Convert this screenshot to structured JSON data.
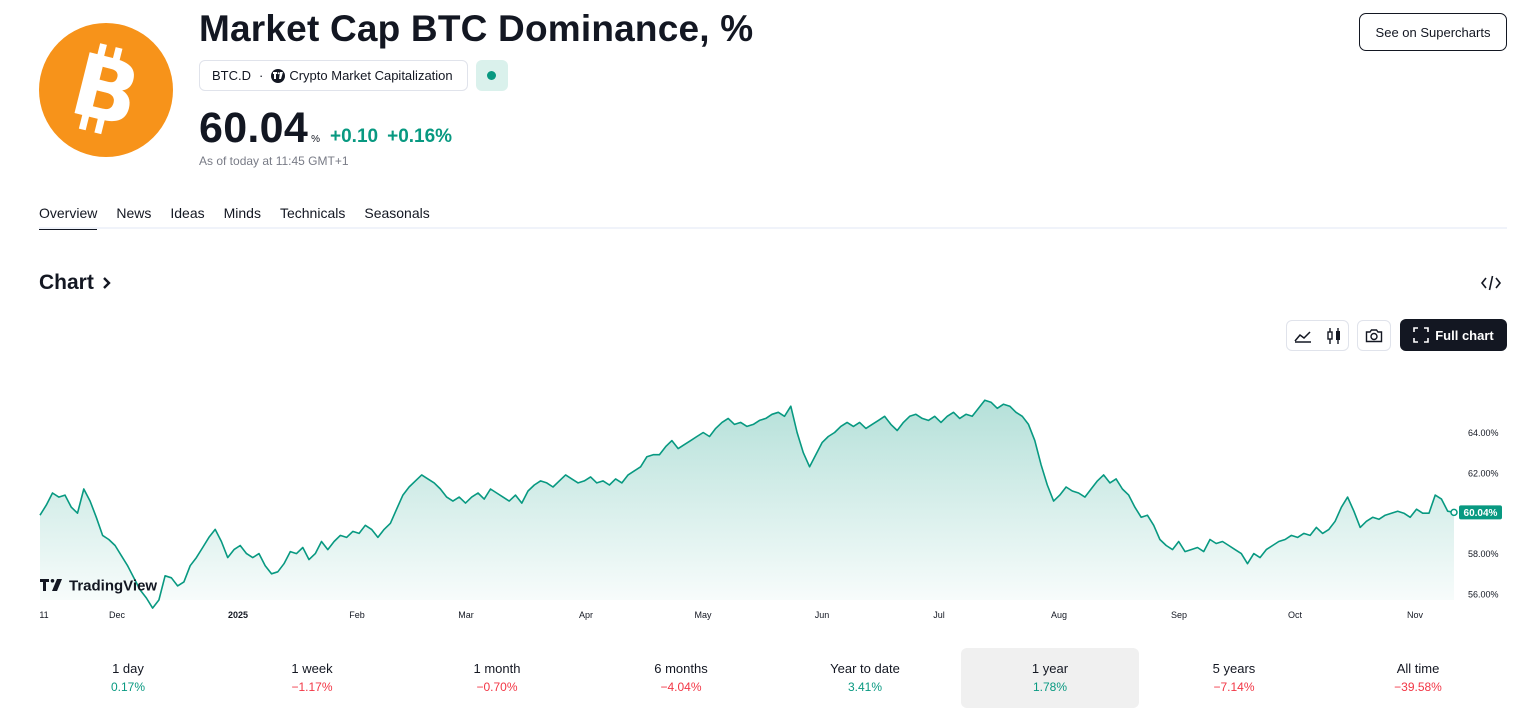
{
  "header": {
    "title": "Market Cap BTC Dominance, %",
    "ticker": "BTC.D",
    "separator": "·",
    "exchange": "Crypto Market Capitalization",
    "price": "60.04",
    "unit": "%",
    "change": "+0.10",
    "change_pct": "+0.16%",
    "as_of": "As of today at 11:45 GMT+1",
    "supercharts_label": "See on Supercharts",
    "logo_icon": "bitcoin-icon",
    "status_color": "#089981"
  },
  "tabs": [
    "Overview",
    "News",
    "Ideas",
    "Minds",
    "Technicals",
    "Seasonals"
  ],
  "chart_section": {
    "heading": "Chart",
    "full_chart_label": "Full chart",
    "watermark": "TradingView"
  },
  "colors": {
    "accent": "#089981",
    "negative": "#f23645",
    "text": "#131722"
  },
  "chart_data": {
    "type": "area",
    "y_ticks": [
      "56.00%",
      "58.00%",
      "60.00%",
      "62.00%",
      "64.00%"
    ],
    "y_tick_values": [
      56,
      58,
      60,
      62,
      64
    ],
    "x_labels": [
      "11",
      "Dec",
      "2025",
      "Feb",
      "Mar",
      "Apr",
      "May",
      "Jun",
      "Jul",
      "Aug",
      "Sep",
      "Oct",
      "Nov"
    ],
    "ylim": [
      55.8,
      66.6
    ],
    "last_value_label": "60.04%",
    "grid": false,
    "series_color": "#089981",
    "values": [
      59.9,
      60.4,
      61.0,
      60.8,
      60.9,
      60.3,
      60.0,
      61.2,
      60.6,
      59.8,
      58.9,
      58.7,
      58.4,
      57.9,
      57.4,
      56.8,
      56.2,
      55.8,
      55.3,
      55.7,
      56.9,
      56.8,
      56.4,
      56.6,
      57.4,
      57.8,
      58.3,
      58.8,
      59.2,
      58.6,
      57.8,
      58.2,
      58.4,
      58.0,
      57.8,
      58.0,
      57.4,
      57.0,
      57.1,
      57.5,
      58.1,
      58.0,
      58.3,
      57.7,
      58.0,
      58.6,
      58.2,
      58.6,
      58.9,
      58.8,
      59.1,
      59.0,
      59.4,
      59.2,
      58.8,
      59.2,
      59.5,
      60.2,
      60.9,
      61.3,
      61.6,
      61.9,
      61.7,
      61.5,
      61.2,
      60.8,
      60.6,
      60.8,
      60.5,
      60.8,
      61.0,
      60.7,
      61.2,
      61.0,
      60.8,
      60.6,
      60.9,
      60.5,
      61.1,
      61.4,
      61.6,
      61.5,
      61.3,
      61.6,
      61.9,
      61.7,
      61.5,
      61.6,
      61.8,
      61.5,
      61.6,
      61.4,
      61.7,
      61.5,
      61.9,
      62.1,
      62.3,
      62.8,
      62.9,
      62.9,
      63.3,
      63.6,
      63.2,
      63.4,
      63.6,
      63.8,
      64.0,
      63.8,
      64.2,
      64.5,
      64.7,
      64.4,
      64.5,
      64.3,
      64.4,
      64.6,
      64.7,
      64.9,
      65.0,
      64.8,
      65.3,
      64.0,
      63.0,
      62.3,
      62.9,
      63.5,
      63.8,
      64.0,
      64.3,
      64.5,
      64.3,
      64.5,
      64.2,
      64.4,
      64.6,
      64.8,
      64.4,
      64.1,
      64.5,
      64.8,
      64.9,
      64.7,
      64.6,
      64.8,
      64.5,
      64.8,
      65.0,
      64.7,
      64.9,
      64.8,
      65.2,
      65.6,
      65.5,
      65.2,
      65.4,
      65.3,
      65.0,
      64.8,
      64.4,
      63.6,
      62.4,
      61.4,
      60.6,
      60.9,
      61.3,
      61.1,
      61.0,
      60.8,
      61.2,
      61.6,
      61.9,
      61.5,
      61.7,
      61.2,
      60.9,
      60.3,
      59.8,
      59.9,
      59.4,
      58.7,
      58.4,
      58.2,
      58.6,
      58.1,
      58.2,
      58.3,
      58.1,
      58.7,
      58.5,
      58.6,
      58.4,
      58.2,
      58.0,
      57.5,
      58.0,
      57.8,
      58.2,
      58.4,
      58.6,
      58.7,
      58.9,
      58.8,
      59.0,
      58.9,
      59.3,
      59.0,
      59.2,
      59.6,
      60.3,
      60.8,
      60.1,
      59.3,
      59.6,
      59.8,
      59.7,
      59.9,
      60.0,
      60.1,
      60.0,
      59.8,
      60.2,
      60.0,
      60.0,
      60.9,
      60.7,
      60.1,
      60.04
    ],
    "period_returns": [
      {
        "label": "1 day",
        "value": "0.17%",
        "sign": "pos"
      },
      {
        "label": "1 week",
        "value": "−1.17%",
        "sign": "neg"
      },
      {
        "label": "1 month",
        "value": "−0.70%",
        "sign": "neg"
      },
      {
        "label": "6 months",
        "value": "−4.04%",
        "sign": "neg"
      },
      {
        "label": "Year to date",
        "value": "3.41%",
        "sign": "pos"
      },
      {
        "label": "1 year",
        "value": "1.78%",
        "sign": "pos",
        "selected": true
      },
      {
        "label": "5 years",
        "value": "−7.14%",
        "sign": "neg"
      },
      {
        "label": "All time",
        "value": "−39.58%",
        "sign": "neg"
      }
    ]
  }
}
